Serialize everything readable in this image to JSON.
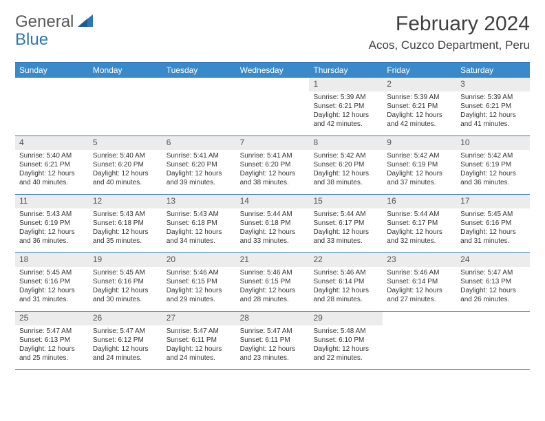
{
  "logo": {
    "text1": "General",
    "text2": "Blue"
  },
  "title": "February 2024",
  "location": "Acos, Cuzco Department, Peru",
  "colors": {
    "header_bg": "#3a8ac9",
    "border": "#2e75b6",
    "daynum_bg": "#ececec",
    "text": "#333333"
  },
  "typography": {
    "title_fontsize": 30,
    "location_fontsize": 17,
    "dayheader_fontsize": 12,
    "daynum_fontsize": 12,
    "body_fontsize": 10
  },
  "dayHeaders": [
    "Sunday",
    "Monday",
    "Tuesday",
    "Wednesday",
    "Thursday",
    "Friday",
    "Saturday"
  ],
  "weeks": [
    [
      {
        "empty": true
      },
      {
        "empty": true
      },
      {
        "empty": true
      },
      {
        "empty": true
      },
      {
        "num": "1",
        "sunrise": "Sunrise: 5:39 AM",
        "sunset": "Sunset: 6:21 PM",
        "daylight1": "Daylight: 12 hours",
        "daylight2": "and 42 minutes."
      },
      {
        "num": "2",
        "sunrise": "Sunrise: 5:39 AM",
        "sunset": "Sunset: 6:21 PM",
        "daylight1": "Daylight: 12 hours",
        "daylight2": "and 42 minutes."
      },
      {
        "num": "3",
        "sunrise": "Sunrise: 5:39 AM",
        "sunset": "Sunset: 6:21 PM",
        "daylight1": "Daylight: 12 hours",
        "daylight2": "and 41 minutes."
      }
    ],
    [
      {
        "num": "4",
        "sunrise": "Sunrise: 5:40 AM",
        "sunset": "Sunset: 6:21 PM",
        "daylight1": "Daylight: 12 hours",
        "daylight2": "and 40 minutes."
      },
      {
        "num": "5",
        "sunrise": "Sunrise: 5:40 AM",
        "sunset": "Sunset: 6:20 PM",
        "daylight1": "Daylight: 12 hours",
        "daylight2": "and 40 minutes."
      },
      {
        "num": "6",
        "sunrise": "Sunrise: 5:41 AM",
        "sunset": "Sunset: 6:20 PM",
        "daylight1": "Daylight: 12 hours",
        "daylight2": "and 39 minutes."
      },
      {
        "num": "7",
        "sunrise": "Sunrise: 5:41 AM",
        "sunset": "Sunset: 6:20 PM",
        "daylight1": "Daylight: 12 hours",
        "daylight2": "and 38 minutes."
      },
      {
        "num": "8",
        "sunrise": "Sunrise: 5:42 AM",
        "sunset": "Sunset: 6:20 PM",
        "daylight1": "Daylight: 12 hours",
        "daylight2": "and 38 minutes."
      },
      {
        "num": "9",
        "sunrise": "Sunrise: 5:42 AM",
        "sunset": "Sunset: 6:19 PM",
        "daylight1": "Daylight: 12 hours",
        "daylight2": "and 37 minutes."
      },
      {
        "num": "10",
        "sunrise": "Sunrise: 5:42 AM",
        "sunset": "Sunset: 6:19 PM",
        "daylight1": "Daylight: 12 hours",
        "daylight2": "and 36 minutes."
      }
    ],
    [
      {
        "num": "11",
        "sunrise": "Sunrise: 5:43 AM",
        "sunset": "Sunset: 6:19 PM",
        "daylight1": "Daylight: 12 hours",
        "daylight2": "and 36 minutes."
      },
      {
        "num": "12",
        "sunrise": "Sunrise: 5:43 AM",
        "sunset": "Sunset: 6:18 PM",
        "daylight1": "Daylight: 12 hours",
        "daylight2": "and 35 minutes."
      },
      {
        "num": "13",
        "sunrise": "Sunrise: 5:43 AM",
        "sunset": "Sunset: 6:18 PM",
        "daylight1": "Daylight: 12 hours",
        "daylight2": "and 34 minutes."
      },
      {
        "num": "14",
        "sunrise": "Sunrise: 5:44 AM",
        "sunset": "Sunset: 6:18 PM",
        "daylight1": "Daylight: 12 hours",
        "daylight2": "and 33 minutes."
      },
      {
        "num": "15",
        "sunrise": "Sunrise: 5:44 AM",
        "sunset": "Sunset: 6:17 PM",
        "daylight1": "Daylight: 12 hours",
        "daylight2": "and 33 minutes."
      },
      {
        "num": "16",
        "sunrise": "Sunrise: 5:44 AM",
        "sunset": "Sunset: 6:17 PM",
        "daylight1": "Daylight: 12 hours",
        "daylight2": "and 32 minutes."
      },
      {
        "num": "17",
        "sunrise": "Sunrise: 5:45 AM",
        "sunset": "Sunset: 6:16 PM",
        "daylight1": "Daylight: 12 hours",
        "daylight2": "and 31 minutes."
      }
    ],
    [
      {
        "num": "18",
        "sunrise": "Sunrise: 5:45 AM",
        "sunset": "Sunset: 6:16 PM",
        "daylight1": "Daylight: 12 hours",
        "daylight2": "and 31 minutes."
      },
      {
        "num": "19",
        "sunrise": "Sunrise: 5:45 AM",
        "sunset": "Sunset: 6:16 PM",
        "daylight1": "Daylight: 12 hours",
        "daylight2": "and 30 minutes."
      },
      {
        "num": "20",
        "sunrise": "Sunrise: 5:46 AM",
        "sunset": "Sunset: 6:15 PM",
        "daylight1": "Daylight: 12 hours",
        "daylight2": "and 29 minutes."
      },
      {
        "num": "21",
        "sunrise": "Sunrise: 5:46 AM",
        "sunset": "Sunset: 6:15 PM",
        "daylight1": "Daylight: 12 hours",
        "daylight2": "and 28 minutes."
      },
      {
        "num": "22",
        "sunrise": "Sunrise: 5:46 AM",
        "sunset": "Sunset: 6:14 PM",
        "daylight1": "Daylight: 12 hours",
        "daylight2": "and 28 minutes."
      },
      {
        "num": "23",
        "sunrise": "Sunrise: 5:46 AM",
        "sunset": "Sunset: 6:14 PM",
        "daylight1": "Daylight: 12 hours",
        "daylight2": "and 27 minutes."
      },
      {
        "num": "24",
        "sunrise": "Sunrise: 5:47 AM",
        "sunset": "Sunset: 6:13 PM",
        "daylight1": "Daylight: 12 hours",
        "daylight2": "and 26 minutes."
      }
    ],
    [
      {
        "num": "25",
        "sunrise": "Sunrise: 5:47 AM",
        "sunset": "Sunset: 6:13 PM",
        "daylight1": "Daylight: 12 hours",
        "daylight2": "and 25 minutes."
      },
      {
        "num": "26",
        "sunrise": "Sunrise: 5:47 AM",
        "sunset": "Sunset: 6:12 PM",
        "daylight1": "Daylight: 12 hours",
        "daylight2": "and 24 minutes."
      },
      {
        "num": "27",
        "sunrise": "Sunrise: 5:47 AM",
        "sunset": "Sunset: 6:11 PM",
        "daylight1": "Daylight: 12 hours",
        "daylight2": "and 24 minutes."
      },
      {
        "num": "28",
        "sunrise": "Sunrise: 5:47 AM",
        "sunset": "Sunset: 6:11 PM",
        "daylight1": "Daylight: 12 hours",
        "daylight2": "and 23 minutes."
      },
      {
        "num": "29",
        "sunrise": "Sunrise: 5:48 AM",
        "sunset": "Sunset: 6:10 PM",
        "daylight1": "Daylight: 12 hours",
        "daylight2": "and 22 minutes."
      },
      {
        "empty": true
      },
      {
        "empty": true
      }
    ]
  ]
}
